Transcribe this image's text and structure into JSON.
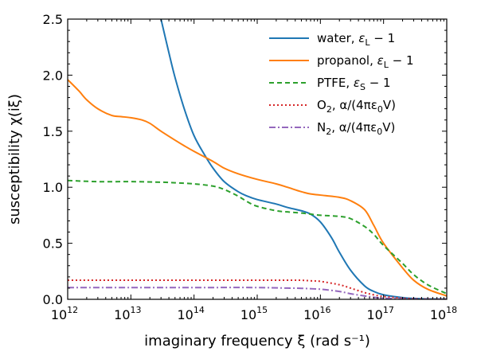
{
  "chart_data": {
    "type": "line",
    "xlabel": "imaginary frequency ξ (rad s⁻¹)",
    "ylabel": "susceptibility χ(iξ)",
    "xscale": "log",
    "xlim": [
      1000000000000.0,
      1e+18
    ],
    "ylim": [
      0,
      2.5
    ],
    "grid": false,
    "legend_position": "top-right",
    "x_ticks": [
      {
        "base": "10",
        "exp": "12"
      },
      {
        "base": "10",
        "exp": "13"
      },
      {
        "base": "10",
        "exp": "14"
      },
      {
        "base": "10",
        "exp": "15"
      },
      {
        "base": "10",
        "exp": "16"
      },
      {
        "base": "10",
        "exp": "17"
      },
      {
        "base": "10",
        "exp": "18"
      }
    ],
    "y_ticks": [
      "0.0",
      "0.5",
      "1.0",
      "1.5",
      "2.0",
      "2.5"
    ],
    "series": [
      {
        "name": "water, εL − 1",
        "legend": {
          "main": "water, ",
          "symbol": "ε",
          "sub": "L",
          "tail": " − 1"
        },
        "color": "#1f77b4",
        "dash": "solid",
        "x": [
          30000000000000.0,
          40000000000000.0,
          50000000000000.0,
          70000000000000.0,
          100000000000000.0,
          150000000000000.0,
          200000000000000.0,
          300000000000000.0,
          500000000000000.0,
          700000000000000.0,
          1000000000000000.0,
          2000000000000000.0,
          3000000000000000.0,
          5000000000000000.0,
          7000000000000000.0,
          1e+16,
          1.5e+16,
          2e+16,
          3e+16,
          5e+16,
          7e+16,
          1e+17,
          2e+17,
          3e+17,
          5e+17,
          1e+18
        ],
        "y": [
          2.5,
          2.2,
          1.98,
          1.7,
          1.46,
          1.28,
          1.17,
          1.05,
          0.96,
          0.92,
          0.89,
          0.85,
          0.82,
          0.79,
          0.76,
          0.69,
          0.55,
          0.42,
          0.26,
          0.12,
          0.07,
          0.04,
          0.015,
          0.008,
          0.004,
          0.002
        ]
      },
      {
        "name": "propanol, εL − 1",
        "legend": {
          "main": "propanol, ",
          "symbol": "ε",
          "sub": "L",
          "tail": " − 1"
        },
        "color": "#ff7f0e",
        "dash": "solid",
        "x": [
          1000000000000.0,
          1500000000000.0,
          2000000000000.0,
          3000000000000.0,
          5000000000000.0,
          7000000000000.0,
          10000000000000.0,
          15000000000000.0,
          20000000000000.0,
          30000000000000.0,
          50000000000000.0,
          70000000000000.0,
          100000000000000.0,
          200000000000000.0,
          300000000000000.0,
          500000000000000.0,
          1000000000000000.0,
          2000000000000000.0,
          3000000000000000.0,
          5000000000000000.0,
          7000000000000000.0,
          1e+16,
          2e+16,
          3e+16,
          5e+16,
          7e+16,
          1e+17,
          2e+17,
          3e+17,
          5e+17,
          1e+18
        ],
        "y": [
          1.96,
          1.86,
          1.78,
          1.7,
          1.64,
          1.63,
          1.62,
          1.6,
          1.57,
          1.5,
          1.42,
          1.37,
          1.32,
          1.23,
          1.17,
          1.12,
          1.07,
          1.03,
          1.0,
          0.96,
          0.94,
          0.93,
          0.91,
          0.88,
          0.8,
          0.66,
          0.5,
          0.28,
          0.17,
          0.09,
          0.03
        ]
      },
      {
        "name": "PTFE, εS − 1",
        "legend": {
          "main": "PTFE, ",
          "symbol": "ε",
          "sub": "S",
          "tail": " − 1"
        },
        "color": "#2ca02c",
        "dash": "6,4",
        "x": [
          1000000000000.0,
          3000000000000.0,
          10000000000000.0,
          30000000000000.0,
          50000000000000.0,
          100000000000000.0,
          200000000000000.0,
          300000000000000.0,
          500000000000000.0,
          700000000000000.0,
          1000000000000000.0,
          2000000000000000.0,
          3000000000000000.0,
          5000000000000000.0,
          7000000000000000.0,
          1e+16,
          2e+16,
          3e+16,
          5e+16,
          7e+16,
          1e+17,
          2e+17,
          3e+17,
          5e+17,
          1e+18
        ],
        "y": [
          1.06,
          1.05,
          1.05,
          1.045,
          1.04,
          1.03,
          1.01,
          0.98,
          0.92,
          0.87,
          0.83,
          0.79,
          0.78,
          0.77,
          0.76,
          0.75,
          0.74,
          0.72,
          0.65,
          0.58,
          0.48,
          0.32,
          0.22,
          0.13,
          0.05
        ]
      },
      {
        "name": "O2, α/(4πε0V)",
        "legend": {
          "main": "O",
          "msub": "2",
          "tail2": ", α/(4πε",
          "sub": "0",
          "tail": "V)"
        },
        "color": "#d62728",
        "dash": "2,3",
        "x": [
          1000000000000.0,
          10000000000000.0,
          100000000000000.0,
          1000000000000000.0,
          3000000000000000.0,
          5000000000000000.0,
          7000000000000000.0,
          1e+16,
          2e+16,
          3e+16,
          5e+16,
          7e+16,
          1e+17,
          2e+17,
          3e+17,
          5e+17,
          1e+18
        ],
        "y": [
          0.17,
          0.17,
          0.17,
          0.17,
          0.17,
          0.17,
          0.165,
          0.16,
          0.13,
          0.1,
          0.06,
          0.04,
          0.025,
          0.01,
          0.006,
          0.003,
          0.001
        ]
      },
      {
        "name": "N2, α/(4πε0V)",
        "legend": {
          "main": "N",
          "msub": "2",
          "tail2": ", α/(4πε",
          "sub": "0",
          "tail": "V)"
        },
        "color": "#9467bd",
        "dash": "8,3,2,3",
        "x": [
          1000000000000.0,
          10000000000000.0,
          100000000000000.0,
          1000000000000000.0,
          3000000000000000.0,
          5000000000000000.0,
          1e+16,
          2e+16,
          3e+16,
          5e+16,
          7e+16,
          1e+17,
          2e+17,
          3e+17,
          5e+17,
          1e+18
        ],
        "y": [
          0.105,
          0.105,
          0.105,
          0.105,
          0.1,
          0.098,
          0.09,
          0.07,
          0.05,
          0.03,
          0.018,
          0.01,
          0.004,
          0.002,
          0.001,
          0.0005
        ]
      }
    ]
  }
}
